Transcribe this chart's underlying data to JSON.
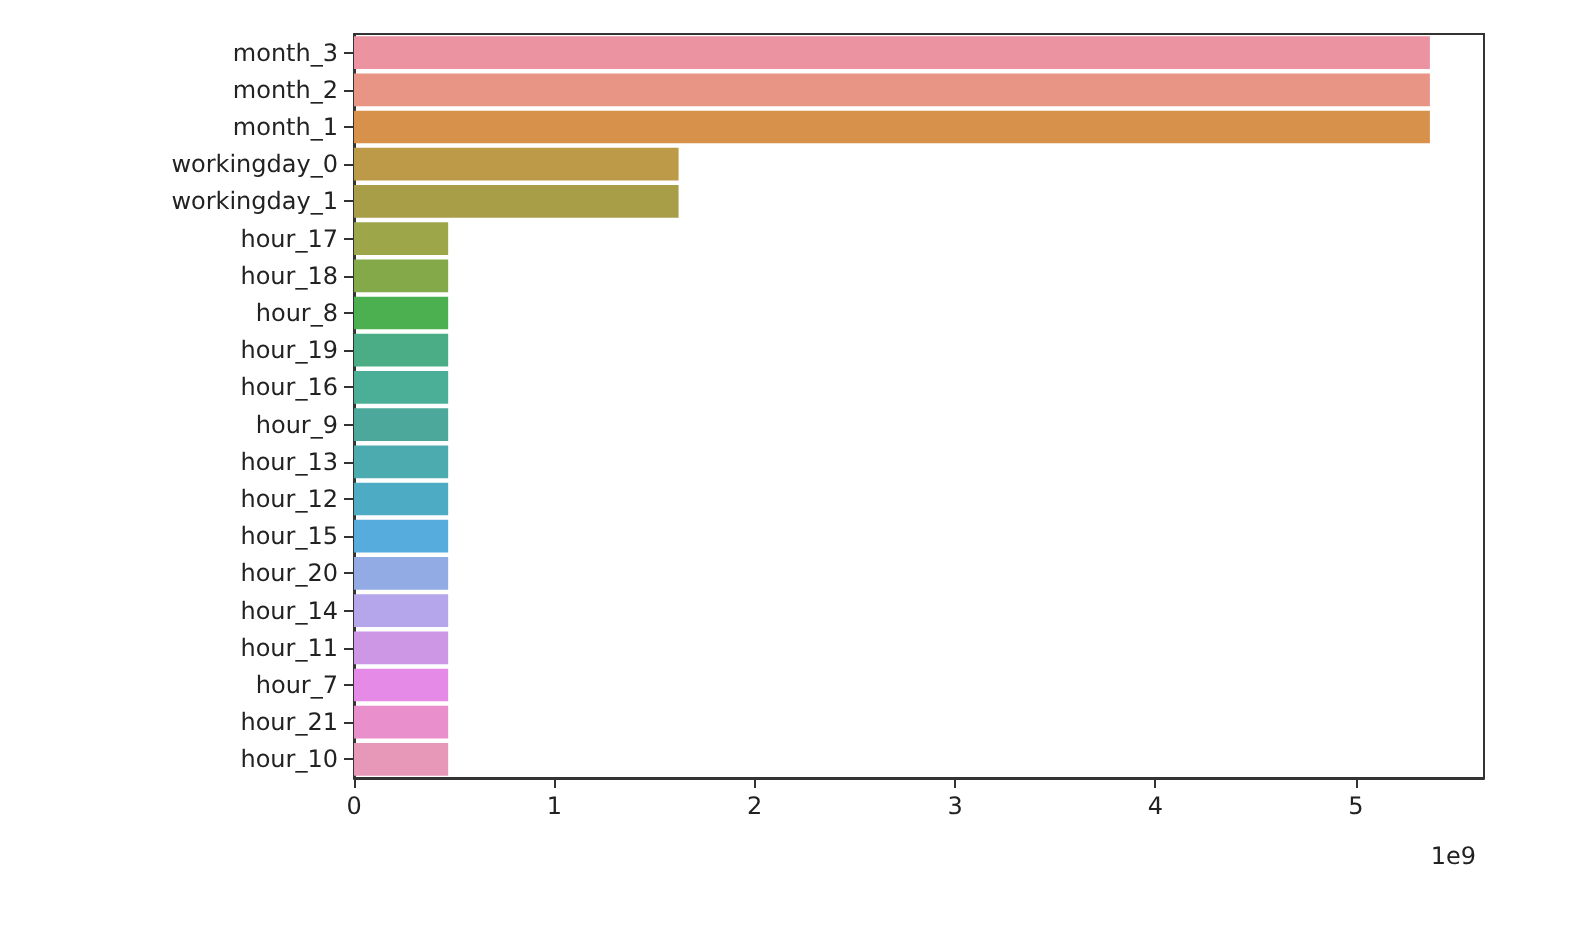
{
  "chart_data": {
    "type": "bar",
    "orientation": "horizontal",
    "categories": [
      "month_3",
      "month_2",
      "month_1",
      "workingday_0",
      "workingday_1",
      "hour_17",
      "hour_18",
      "hour_8",
      "hour_19",
      "hour_16",
      "hour_9",
      "hour_13",
      "hour_12",
      "hour_15",
      "hour_20",
      "hour_14",
      "hour_11",
      "hour_7",
      "hour_21",
      "hour_10"
    ],
    "values": [
      5.37,
      5.37,
      5.37,
      1.62,
      1.62,
      0.47,
      0.47,
      0.47,
      0.47,
      0.47,
      0.47,
      0.47,
      0.47,
      0.47,
      0.47,
      0.47,
      0.47,
      0.47,
      0.47,
      0.47
    ],
    "colors": [
      "#ec93a2",
      "#e89585",
      "#d8914b",
      "#bd9a48",
      "#a89e48",
      "#9da74a",
      "#84a949",
      "#4caf50",
      "#4bad85",
      "#4baf98",
      "#4ba89a",
      "#4cabaf",
      "#4eabc4",
      "#56acdc",
      "#92abe4",
      "#b5a5ea",
      "#cd97e6",
      "#e58ae6",
      "#e88fcc",
      "#e797b8"
    ],
    "xlim": [
      0,
      5.64
    ],
    "xticks": [
      0,
      1,
      2,
      3,
      4,
      5
    ],
    "annotations": [
      "1e9"
    ]
  }
}
